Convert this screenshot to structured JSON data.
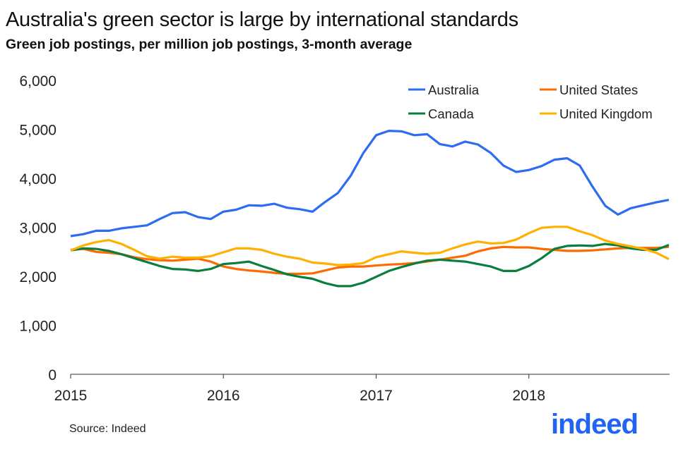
{
  "chart_data": {
    "type": "line",
    "title": "Australia's green sector is large by international standards",
    "subtitle": "Green job postings, per million job postings, 3-month average",
    "source": "Source: Indeed",
    "logo": "indeed",
    "xlabel": "",
    "ylabel": "",
    "x_start": "2015-01",
    "x_frequency": "monthly",
    "x_ticks": [
      "2015",
      "2016",
      "2017",
      "2018"
    ],
    "y_ticks": [
      "0",
      "1,000",
      "2,000",
      "3,000",
      "4,000",
      "5,000",
      "6,000"
    ],
    "ylim": [
      0,
      6000
    ],
    "grid": false,
    "legend_placement": "top-right",
    "series": [
      {
        "name": "Australia",
        "color": "#2b6cf0",
        "values": [
          2820,
          2860,
          2930,
          2930,
          2980,
          3010,
          3040,
          3170,
          3290,
          3310,
          3210,
          3170,
          3320,
          3360,
          3450,
          3440,
          3480,
          3400,
          3370,
          3320,
          3520,
          3700,
          4050,
          4520,
          4880,
          4970,
          4960,
          4880,
          4900,
          4700,
          4650,
          4750,
          4690,
          4520,
          4260,
          4130,
          4170,
          4250,
          4380,
          4410,
          4260,
          3830,
          3440,
          3260,
          3390,
          3450,
          3510,
          3560
        ]
      },
      {
        "name": "United States",
        "color": "#ff6a00",
        "values": [
          2540,
          2560,
          2500,
          2480,
          2450,
          2390,
          2350,
          2330,
          2320,
          2340,
          2360,
          2300,
          2200,
          2150,
          2120,
          2100,
          2070,
          2050,
          2050,
          2060,
          2120,
          2180,
          2200,
          2200,
          2220,
          2240,
          2250,
          2270,
          2300,
          2340,
          2380,
          2420,
          2510,
          2570,
          2600,
          2590,
          2590,
          2560,
          2540,
          2520,
          2520,
          2530,
          2550,
          2570,
          2580,
          2580,
          2580,
          2600
        ]
      },
      {
        "name": "Canada",
        "color": "#0a7e3e",
        "values": [
          2530,
          2570,
          2560,
          2520,
          2450,
          2370,
          2290,
          2210,
          2150,
          2140,
          2110,
          2150,
          2250,
          2270,
          2300,
          2210,
          2130,
          2040,
          1990,
          1950,
          1860,
          1800,
          1800,
          1870,
          1990,
          2110,
          2190,
          2260,
          2320,
          2340,
          2320,
          2300,
          2250,
          2200,
          2110,
          2110,
          2210,
          2370,
          2560,
          2620,
          2630,
          2620,
          2660,
          2630,
          2570,
          2540,
          2540,
          2640
        ]
      },
      {
        "name": "United Kingdom",
        "color": "#ffb000",
        "values": [
          2530,
          2630,
          2700,
          2740,
          2660,
          2540,
          2410,
          2360,
          2400,
          2380,
          2380,
          2410,
          2490,
          2570,
          2570,
          2540,
          2460,
          2400,
          2360,
          2280,
          2260,
          2230,
          2240,
          2270,
          2390,
          2450,
          2510,
          2480,
          2460,
          2480,
          2570,
          2650,
          2710,
          2670,
          2680,
          2750,
          2880,
          2990,
          3010,
          3010,
          2920,
          2840,
          2730,
          2660,
          2610,
          2560,
          2480,
          2350
        ]
      }
    ]
  }
}
